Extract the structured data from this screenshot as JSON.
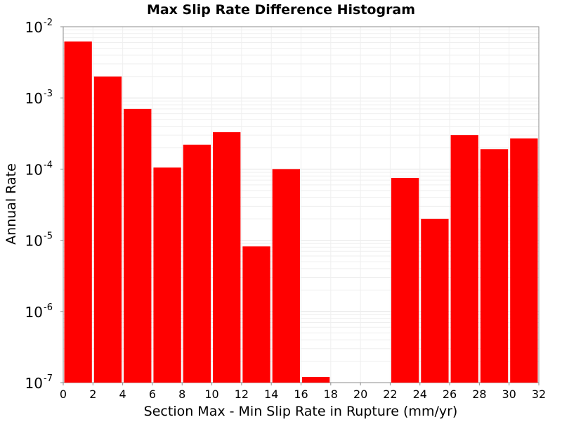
{
  "chart_data": {
    "type": "bar",
    "title": "Max Slip Rate Difference Histogram",
    "xlabel": "Section Max - Min Slip Rate in Rupture (mm/yr)",
    "ylabel": "Annual Rate",
    "yscale": "log",
    "xlim": [
      0,
      32
    ],
    "ylim": [
      1e-07,
      0.01
    ],
    "bin_width": 2,
    "x_ticks": [
      "0",
      "2",
      "4",
      "6",
      "8",
      "10",
      "12",
      "14",
      "16",
      "18",
      "20",
      "22",
      "24",
      "26",
      "28",
      "30",
      "32"
    ],
    "y_ticks": [
      {
        "base": "10",
        "exp": "-7",
        "value": 1e-07
      },
      {
        "base": "10",
        "exp": "-6",
        "value": 1e-06
      },
      {
        "base": "10",
        "exp": "-5",
        "value": 1e-05
      },
      {
        "base": "10",
        "exp": "-4",
        "value": 0.0001
      },
      {
        "base": "10",
        "exp": "-3",
        "value": 0.001
      },
      {
        "base": "10",
        "exp": "-2",
        "value": 0.01
      }
    ],
    "grid": true,
    "bar_color": "#ff0000",
    "bins": [
      {
        "x": 1,
        "value": 0.0062
      },
      {
        "x": 3,
        "value": 0.002
      },
      {
        "x": 5,
        "value": 0.0007
      },
      {
        "x": 7,
        "value": 0.000105
      },
      {
        "x": 9,
        "value": 0.00022
      },
      {
        "x": 11,
        "value": 0.00033
      },
      {
        "x": 13,
        "value": 8.2e-06
      },
      {
        "x": 15,
        "value": 0.0001
      },
      {
        "x": 17,
        "value": 1.2e-07
      },
      {
        "x": 19,
        "value": 0
      },
      {
        "x": 21,
        "value": 0
      },
      {
        "x": 23,
        "value": 7.5e-05
      },
      {
        "x": 25,
        "value": 2e-05
      },
      {
        "x": 27,
        "value": 0.0003
      },
      {
        "x": 29,
        "value": 0.00019
      },
      {
        "x": 31,
        "value": 0.00027
      }
    ]
  }
}
